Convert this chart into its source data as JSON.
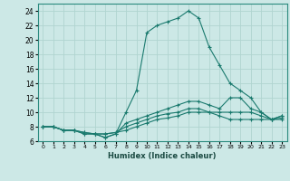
{
  "xlabel": "Humidex (Indice chaleur)",
  "x": [
    0,
    1,
    2,
    3,
    4,
    5,
    6,
    7,
    8,
    9,
    10,
    11,
    12,
    13,
    14,
    15,
    16,
    17,
    18,
    19,
    20,
    21,
    22,
    23
  ],
  "lines": [
    [
      8,
      8,
      7.5,
      7.5,
      7,
      7,
      6.5,
      7,
      10,
      13,
      21,
      22,
      22.5,
      23,
      24,
      23,
      19,
      16.5,
      14,
      13,
      12,
      10,
      9,
      9
    ],
    [
      8,
      8,
      7.5,
      7.5,
      7,
      7,
      6.5,
      7,
      8.5,
      9,
      9.5,
      10,
      10.5,
      11,
      11.5,
      11.5,
      11,
      10.5,
      12,
      12,
      10.5,
      10,
      9,
      9.5
    ],
    [
      8,
      8,
      7.5,
      7.5,
      7.2,
      7,
      7,
      7.2,
      8,
      8.5,
      9,
      9.5,
      9.8,
      10,
      10.5,
      10.5,
      10,
      10,
      10,
      10,
      10,
      9.5,
      9,
      9.5
    ],
    [
      8,
      8,
      7.5,
      7.5,
      7.2,
      7,
      7,
      7.2,
      7.5,
      8,
      8.5,
      9,
      9.2,
      9.5,
      10,
      10,
      10,
      9.5,
      9,
      9,
      9,
      9,
      9,
      9.2
    ]
  ],
  "line_color": "#1a7a6e",
  "bg_color": "#cce8e6",
  "grid_color": "#b0d4d0",
  "ylim": [
    6,
    25
  ],
  "yticks": [
    6,
    8,
    10,
    12,
    14,
    16,
    18,
    20,
    22,
    24
  ],
  "xlim": [
    -0.5,
    23.5
  ]
}
